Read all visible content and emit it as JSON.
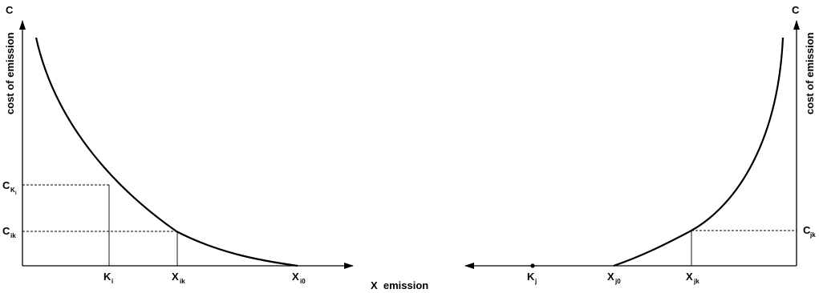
{
  "left_panel": {
    "y_axis_symbol": "C",
    "y_axis_title": "cost of emission",
    "c_k_main": "C",
    "c_k_sub": "K",
    "c_k_subsub": "i",
    "c_ik_main": "C",
    "c_ik_sub": "ik",
    "k_i_main": "K",
    "k_i_sub": "i",
    "x_ik_main": "X",
    "x_ik_sub": "ik",
    "x_i0_main": "X",
    "x_i0_sub": "i0"
  },
  "x_axis_title": "X  emission",
  "right_panel": {
    "y_axis_symbol": "C",
    "y_axis_title": "cost of emission",
    "c_jk_main": "C",
    "c_jk_sub": "jk",
    "k_j_main": "K",
    "k_j_sub": "j",
    "x_j0_main": "X",
    "x_j0_sub": "j0",
    "x_jk_main": "X",
    "x_jk_sub": "jk"
  }
}
